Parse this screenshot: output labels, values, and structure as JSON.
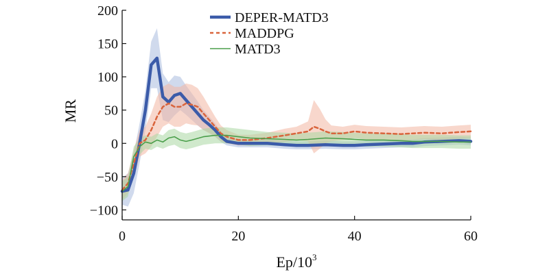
{
  "chart_data": {
    "type": "line",
    "xlabel": "Ep/10",
    "xlabel_sup": "3",
    "ylabel": "MR",
    "xlim": [
      0,
      60
    ],
    "ylim": [
      -115,
      200
    ],
    "xticks": [
      0,
      20,
      40,
      60
    ],
    "yticks": [
      200,
      150,
      100,
      50,
      0,
      -50,
      -100
    ],
    "xtick_labels": [
      "0",
      "20",
      "40",
      "60"
    ],
    "ytick_labels": [
      "200",
      "150",
      "100",
      "50",
      "0",
      "−50",
      "−100"
    ],
    "grid": false,
    "legend_position": "top-center",
    "series": [
      {
        "name": "DEPER-MATD3",
        "color": "#3b5ba9",
        "band_color": "#a9bbde",
        "style": "solid-thick",
        "x": [
          0,
          1,
          2,
          3,
          4,
          5,
          6,
          7,
          8,
          9,
          10,
          11,
          12,
          13,
          14,
          15,
          16,
          17,
          18,
          20,
          22,
          25,
          28,
          30,
          32,
          35,
          38,
          40,
          42,
          45,
          48,
          50,
          52,
          55,
          58,
          60
        ],
        "y": [
          -72,
          -70,
          -45,
          0,
          50,
          118,
          128,
          70,
          62,
          72,
          75,
          65,
          55,
          45,
          35,
          28,
          20,
          10,
          3,
          0,
          0,
          0,
          -2,
          -3,
          -3,
          -2,
          -3,
          -3,
          -2,
          -1,
          0,
          0,
          2,
          3,
          4,
          3
        ],
        "band": [
          20,
          25,
          30,
          30,
          30,
          35,
          45,
          35,
          30,
          30,
          25,
          22,
          20,
          18,
          15,
          12,
          10,
          8,
          6,
          6,
          6,
          6,
          6,
          6,
          6,
          6,
          6,
          6,
          6,
          6,
          6,
          6,
          6,
          6,
          6,
          6
        ]
      },
      {
        "name": "MADDPG",
        "color": "#d9643c",
        "band_color": "#f2b7a3",
        "style": "dashed",
        "x": [
          0,
          1,
          2,
          3,
          4,
          5,
          6,
          7,
          8,
          9,
          10,
          11,
          12,
          13,
          14,
          15,
          16,
          17,
          18,
          20,
          22,
          25,
          28,
          30,
          32,
          33,
          34,
          35,
          36,
          38,
          40,
          42,
          45,
          48,
          50,
          52,
          55,
          58,
          60
        ],
        "y": [
          -70,
          -60,
          -30,
          0,
          5,
          20,
          40,
          55,
          60,
          55,
          55,
          60,
          58,
          55,
          45,
          35,
          25,
          15,
          10,
          5,
          5,
          8,
          12,
          15,
          18,
          25,
          22,
          18,
          15,
          15,
          18,
          16,
          15,
          14,
          15,
          16,
          15,
          17,
          18
        ],
        "band": [
          15,
          15,
          20,
          20,
          20,
          25,
          30,
          30,
          30,
          30,
          30,
          30,
          30,
          28,
          25,
          20,
          15,
          12,
          10,
          8,
          8,
          8,
          10,
          10,
          15,
          40,
          30,
          18,
          12,
          10,
          10,
          10,
          10,
          10,
          10,
          10,
          10,
          10,
          10
        ]
      },
      {
        "name": "MATD3",
        "color": "#4a9e4a",
        "band_color": "#a9d7a2",
        "style": "solid-thin",
        "x": [
          0,
          1,
          2,
          3,
          4,
          5,
          6,
          7,
          8,
          9,
          10,
          11,
          12,
          14,
          16,
          18,
          20,
          22,
          25,
          28,
          30,
          32,
          35,
          38,
          40,
          42,
          45,
          48,
          50,
          52,
          55,
          58,
          60
        ],
        "y": [
          -72,
          -65,
          -20,
          -5,
          2,
          0,
          5,
          2,
          8,
          10,
          5,
          3,
          5,
          10,
          12,
          12,
          10,
          8,
          7,
          6,
          5,
          6,
          8,
          7,
          6,
          5,
          5,
          4,
          3,
          3,
          3,
          2,
          2
        ],
        "band": [
          15,
          15,
          15,
          12,
          10,
          10,
          10,
          10,
          12,
          12,
          12,
          12,
          12,
          12,
          12,
          12,
          12,
          12,
          10,
          10,
          10,
          10,
          10,
          10,
          10,
          10,
          10,
          10,
          10,
          10,
          10,
          10,
          10
        ]
      }
    ]
  }
}
